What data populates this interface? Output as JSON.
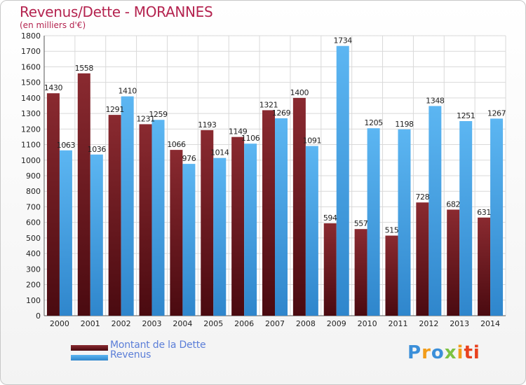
{
  "header": {
    "title": "Revenus/Dette - MORANNES",
    "subtitle": "(en milliers d'€)"
  },
  "legend": {
    "items": [
      {
        "label": "Montant de la Dette",
        "color": "#7a1e24"
      },
      {
        "label": "Revenus",
        "color": "#4aa6e8"
      }
    ]
  },
  "logo": {
    "text": "Proxiti"
  },
  "chart_data": {
    "type": "bar",
    "title": "Revenus/Dette - MORANNES",
    "subtitle": "(en milliers d'€)",
    "categories": [
      "2000",
      "2001",
      "2002",
      "2003",
      "2004",
      "2005",
      "2006",
      "2007",
      "2008",
      "2009",
      "2010",
      "2011",
      "2012",
      "2013",
      "2014"
    ],
    "series": [
      {
        "name": "Montant de la Dette",
        "color": "#7a1e24",
        "values": [
          1430,
          1558,
          1291,
          1231,
          1066,
          1193,
          1149,
          1321,
          1400,
          594,
          557,
          515,
          728,
          682,
          631
        ]
      },
      {
        "name": "Revenus",
        "color": "#4aa6e8",
        "values": [
          1063,
          1036,
          1410,
          1259,
          976,
          1014,
          1106,
          1269,
          1091,
          1734,
          1205,
          1198,
          1348,
          1251,
          1267
        ]
      }
    ],
    "ylim": [
      0,
      1800
    ],
    "yticks": [
      0,
      100,
      200,
      300,
      400,
      500,
      600,
      700,
      800,
      900,
      1000,
      1100,
      1200,
      1300,
      1400,
      1500,
      1600,
      1700,
      1800
    ],
    "grid": true,
    "legend_position": "bottom-left"
  }
}
